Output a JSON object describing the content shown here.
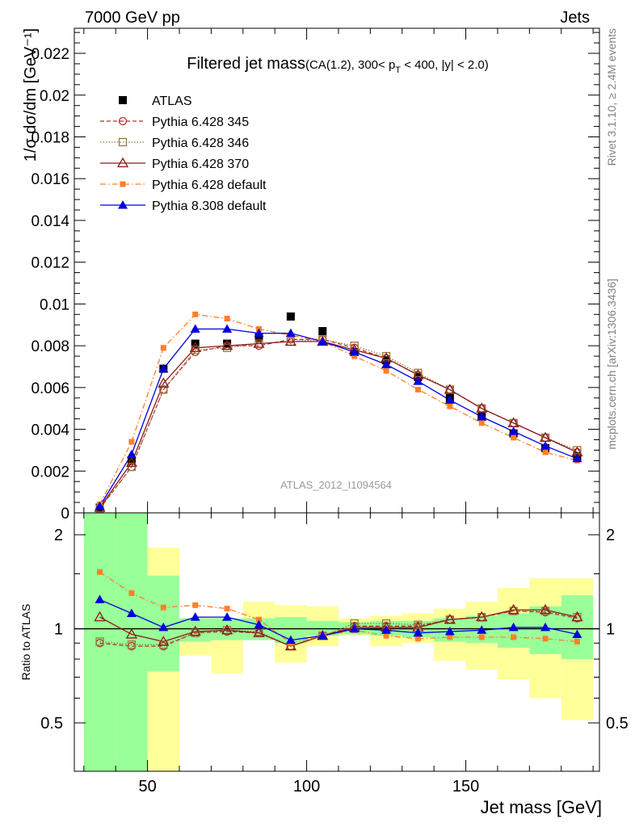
{
  "header": {
    "left": "7000 GeV pp",
    "right": "Jets",
    "side_top": "Rivet 3.1.10, ≥ 2.4M events",
    "side_bottom": "mcplots.cern.ch [arXiv:1306.3436]"
  },
  "chart_data": [
    {
      "type": "line",
      "title_main": "Filtered jet mass",
      "title_sub": "(CA(1.2), 300< p",
      "title_sub_subscript": "T",
      "title_sub_end": " < 400, |y| < 2.0)",
      "ylabel": "1/σ dσ/dm [GeV⁻¹]",
      "watermark": "ATLAS_2012_I1094564",
      "xlim": [
        27,
        192
      ],
      "ylim": [
        0,
        0.0232
      ],
      "yticks": [
        0,
        0.002,
        0.004,
        0.006,
        0.008,
        0.01,
        0.012,
        0.014,
        0.016,
        0.018,
        0.02,
        0.022
      ],
      "ytick_labels": [
        "0",
        "0.002",
        "0.004",
        "0.006",
        "0.008",
        "0.01",
        "0.012",
        "0.014",
        "0.016",
        "0.018",
        "0.02",
        "0.022"
      ],
      "legend_position": "top-left",
      "x": [
        35,
        45,
        55,
        65,
        75,
        85,
        95,
        105,
        115,
        125,
        135,
        145,
        155,
        165,
        175,
        185
      ],
      "series": [
        {
          "name": "ATLAS",
          "color": "#000000",
          "marker": "square-filled",
          "line": "none",
          "values": [
            0.00025,
            0.0025,
            0.0069,
            0.0081,
            0.0081,
            0.0084,
            0.0094,
            0.0087,
            0.0077,
            0.0073,
            0.0065,
            0.0055,
            0.0046,
            0.0038,
            0.0031,
            0.0027
          ]
        },
        {
          "name": "Pythia 6.428 345",
          "color": "#b03030",
          "marker": "circle-open",
          "line": "dashed",
          "values": [
            0.0002,
            0.0022,
            0.0059,
            0.0077,
            0.008,
            0.008,
            0.0083,
            0.0083,
            0.0079,
            0.0074,
            0.0066,
            0.0059,
            0.005,
            0.0043,
            0.0036,
            0.0029
          ]
        },
        {
          "name": "Pythia 6.428 346",
          "color": "#9a7a3a",
          "marker": "square-open",
          "line": "dotted",
          "values": [
            0.0002,
            0.0022,
            0.0059,
            0.0078,
            0.0079,
            0.0081,
            0.0082,
            0.0083,
            0.008,
            0.0075,
            0.0067,
            0.0059,
            0.005,
            0.0043,
            0.0036,
            0.003
          ]
        },
        {
          "name": "Pythia 6.428 370",
          "color": "#8b1a1a",
          "marker": "triangle-open",
          "line": "solid",
          "values": [
            0.00025,
            0.0024,
            0.0062,
            0.0079,
            0.008,
            0.0081,
            0.0082,
            0.0082,
            0.0078,
            0.0074,
            0.0066,
            0.0059,
            0.005,
            0.0043,
            0.0036,
            0.0029
          ]
        },
        {
          "name": "Pythia 6.428 default",
          "color": "#ff7f2a",
          "marker": "square-filled-small",
          "line": "dashdot",
          "values": [
            0.0004,
            0.0034,
            0.0079,
            0.0095,
            0.0093,
            0.0088,
            0.0085,
            0.0082,
            0.0075,
            0.0068,
            0.0059,
            0.0051,
            0.0043,
            0.0036,
            0.0029,
            0.0025
          ]
        },
        {
          "name": "Pythia 8.308 default",
          "color": "#0000dd",
          "marker": "triangle-filled",
          "line": "solid",
          "values": [
            0.00032,
            0.0028,
            0.0069,
            0.0088,
            0.0088,
            0.0086,
            0.0086,
            0.0082,
            0.0077,
            0.0071,
            0.0063,
            0.0054,
            0.0046,
            0.0039,
            0.0032,
            0.0026
          ]
        }
      ]
    },
    {
      "type": "line",
      "ylabel": "Ratio to ATLAS",
      "xlabel": "Jet mass [GeV]",
      "xlim": [
        27,
        192
      ],
      "ylim": [
        0.35,
        2.35
      ],
      "xticks": [
        50,
        100,
        150
      ],
      "xtick_labels": [
        "50",
        "100",
        "150"
      ],
      "yticks": [
        0.5,
        1,
        2
      ],
      "ytick_labels": [
        "0.5",
        "1",
        "2"
      ],
      "x": [
        35,
        45,
        55,
        65,
        75,
        85,
        95,
        105,
        115,
        125,
        135,
        145,
        155,
        165,
        175,
        185
      ],
      "bin_edges": [
        30,
        40,
        50,
        60,
        70,
        80,
        90,
        100,
        110,
        120,
        130,
        140,
        150,
        160,
        170,
        180,
        190
      ],
      "band_stat": {
        "color": "#99ff99",
        "low": [
          0.35,
          0.35,
          0.73,
          0.91,
          0.92,
          0.92,
          0.9,
          0.95,
          0.96,
          0.95,
          0.94,
          0.91,
          0.9,
          0.87,
          0.83,
          0.8
        ],
        "high": [
          2.35,
          2.35,
          1.48,
          1.08,
          1.08,
          1.08,
          1.09,
          1.06,
          1.05,
          1.06,
          1.06,
          1.08,
          1.1,
          1.12,
          1.18,
          1.28
        ]
      },
      "band_total": {
        "color": "#ffff99",
        "low": [
          0.35,
          0.35,
          0.35,
          0.82,
          0.72,
          0.92,
          0.78,
          0.88,
          0.95,
          0.88,
          0.9,
          0.79,
          0.74,
          0.69,
          0.6,
          0.51
        ],
        "high": [
          2.35,
          2.22,
          1.82,
          1.08,
          1.08,
          1.22,
          1.19,
          1.18,
          1.08,
          1.1,
          1.12,
          1.16,
          1.22,
          1.35,
          1.45,
          1.45
        ]
      },
      "series": [
        {
          "name": "Pythia 6.428 345",
          "color": "#b03030",
          "marker": "circle-open",
          "line": "dashed",
          "values": [
            0.9,
            0.88,
            0.88,
            0.97,
            0.98,
            0.97,
            0.88,
            0.95,
            1.02,
            1.02,
            1.02,
            1.07,
            1.09,
            1.14,
            1.13,
            1.08
          ]
        },
        {
          "name": "Pythia 6.428 346",
          "color": "#9a7a3a",
          "marker": "square-open",
          "line": "dotted",
          "values": [
            0.91,
            0.89,
            0.89,
            0.97,
            0.99,
            0.98,
            0.88,
            0.95,
            1.04,
            1.04,
            1.03,
            1.07,
            1.09,
            1.14,
            1.14,
            1.09
          ]
        },
        {
          "name": "Pythia 6.428 370",
          "color": "#8b1a1a",
          "marker": "triangle-open",
          "line": "solid",
          "values": [
            1.09,
            0.96,
            0.91,
            0.98,
            0.99,
            0.97,
            0.88,
            0.95,
            1.01,
            1.01,
            1.01,
            1.07,
            1.09,
            1.15,
            1.15,
            1.09
          ]
        },
        {
          "name": "Pythia 6.428 default",
          "color": "#ff7f2a",
          "marker": "square-filled-small",
          "line": "dashdot",
          "values": [
            1.52,
            1.3,
            1.17,
            1.19,
            1.16,
            1.07,
            0.9,
            0.95,
            0.99,
            0.95,
            0.93,
            0.94,
            0.94,
            0.94,
            0.93,
            0.91
          ]
        },
        {
          "name": "Pythia 8.308 default",
          "color": "#0000dd",
          "marker": "triangle-filled",
          "line": "solid",
          "values": [
            1.24,
            1.12,
            1.01,
            1.09,
            1.09,
            1.03,
            0.92,
            0.95,
            1.0,
            0.99,
            0.97,
            0.98,
            0.99,
            1.01,
            1.01,
            0.96
          ]
        }
      ]
    }
  ]
}
